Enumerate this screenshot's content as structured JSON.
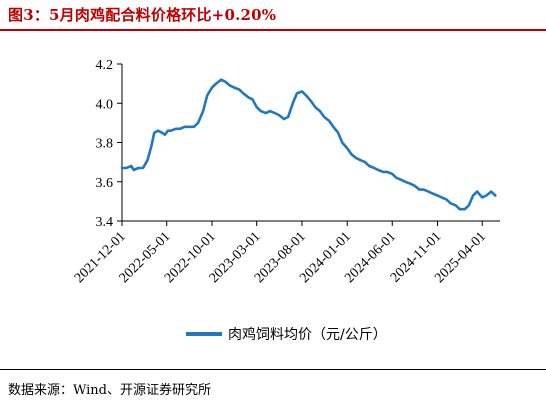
{
  "title": "图3：5月肉鸡配合料价格环比+0.20%",
  "source": "数据来源：Wind、开源证券研究所",
  "chart_data": {
    "type": "line",
    "title": "图3：5月肉鸡配合料价格环比+0.20%",
    "xlabel": "",
    "ylabel": "",
    "ylim": [
      3.4,
      4.2
    ],
    "yticks": [
      3.4,
      3.6,
      3.8,
      4.0,
      4.2
    ],
    "ytick_labels": [
      "3.4",
      "3.6",
      "3.8",
      "4.0",
      "4.2"
    ],
    "xlim": [
      "2021-12-01",
      "2025-05-31"
    ],
    "xticks": [
      "2021-12-01",
      "2022-05-01",
      "2022-10-01",
      "2023-03-01",
      "2023-08-01",
      "2024-01-01",
      "2024-06-01",
      "2024-11-01",
      "2025-04-01"
    ],
    "grid": false,
    "legend": "bottom",
    "colors": {
      "line": "#1f78c1"
    },
    "series": [
      {
        "name": "肉鸡饲料均价（元/公斤）",
        "x": [
          "2021-12-01",
          "2021-12-15",
          "2022-01-01",
          "2022-01-10",
          "2022-01-25",
          "2022-02-10",
          "2022-02-25",
          "2022-03-10",
          "2022-03-20",
          "2022-04-01",
          "2022-04-15",
          "2022-04-25",
          "2022-05-05",
          "2022-05-15",
          "2022-06-01",
          "2022-06-15",
          "2022-07-01",
          "2022-07-15",
          "2022-08-01",
          "2022-08-15",
          "2022-09-01",
          "2022-09-15",
          "2022-10-01",
          "2022-10-15",
          "2022-11-01",
          "2022-11-15",
          "2022-12-01",
          "2022-12-15",
          "2023-01-01",
          "2023-01-15",
          "2023-02-01",
          "2023-02-15",
          "2023-03-01",
          "2023-03-15",
          "2023-04-01",
          "2023-04-15",
          "2023-05-01",
          "2023-05-15",
          "2023-06-01",
          "2023-06-15",
          "2023-07-01",
          "2023-07-15",
          "2023-08-01",
          "2023-08-15",
          "2023-09-01",
          "2023-09-15",
          "2023-10-01",
          "2023-10-15",
          "2023-11-01",
          "2023-11-15",
          "2023-12-01",
          "2023-12-15",
          "2024-01-01",
          "2024-01-15",
          "2024-02-01",
          "2024-02-15",
          "2024-03-01",
          "2024-03-15",
          "2024-04-01",
          "2024-04-15",
          "2024-05-01",
          "2024-05-15",
          "2024-06-01",
          "2024-06-15",
          "2024-07-01",
          "2024-07-15",
          "2024-08-01",
          "2024-08-15",
          "2024-09-01",
          "2024-09-15",
          "2024-10-01",
          "2024-10-15",
          "2024-11-01",
          "2024-11-15",
          "2024-12-01",
          "2024-12-15",
          "2025-01-01",
          "2025-01-15",
          "2025-02-01",
          "2025-02-15",
          "2025-03-01",
          "2025-03-15",
          "2025-04-01",
          "2025-04-15",
          "2025-05-01",
          "2025-05-15"
        ],
        "y": [
          3.67,
          3.67,
          3.68,
          3.66,
          3.67,
          3.67,
          3.71,
          3.78,
          3.85,
          3.86,
          3.85,
          3.84,
          3.86,
          3.86,
          3.87,
          3.87,
          3.88,
          3.88,
          3.88,
          3.9,
          3.96,
          4.04,
          4.08,
          4.1,
          4.12,
          4.11,
          4.09,
          4.08,
          4.07,
          4.05,
          4.03,
          4.02,
          3.98,
          3.96,
          3.95,
          3.96,
          3.95,
          3.94,
          3.92,
          3.93,
          4.0,
          4.05,
          4.06,
          4.04,
          4.01,
          3.98,
          3.96,
          3.93,
          3.91,
          3.88,
          3.85,
          3.8,
          3.77,
          3.74,
          3.72,
          3.71,
          3.7,
          3.68,
          3.67,
          3.66,
          3.65,
          3.65,
          3.64,
          3.62,
          3.61,
          3.6,
          3.59,
          3.58,
          3.56,
          3.56,
          3.55,
          3.54,
          3.53,
          3.52,
          3.51,
          3.49,
          3.48,
          3.46,
          3.46,
          3.48,
          3.53,
          3.55,
          3.52,
          3.53,
          3.55,
          3.53
        ]
      }
    ]
  }
}
